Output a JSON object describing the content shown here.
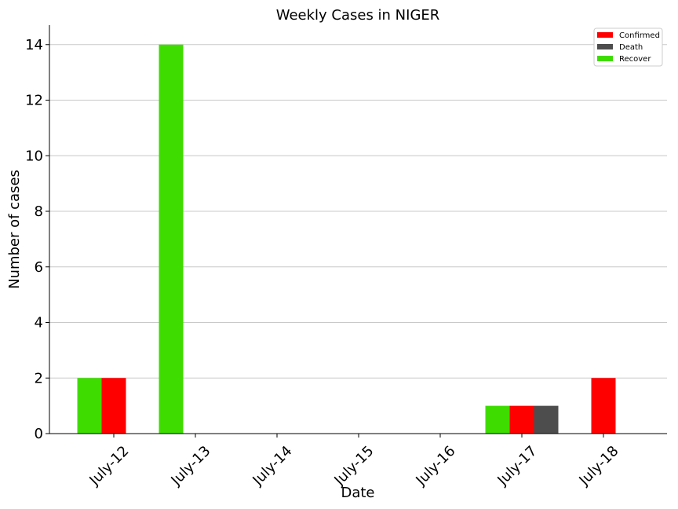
{
  "chart_data": {
    "type": "bar",
    "title": "Weekly Cases in NIGER",
    "xlabel": "Date",
    "ylabel": "Number of cases",
    "categories": [
      "July-12",
      "July-13",
      "July-14",
      "July-15",
      "July-16",
      "July-17",
      "July-18"
    ],
    "series": [
      {
        "name": "Recover",
        "color": "#3fdc00",
        "values": [
          2,
          14,
          0,
          0,
          0,
          1,
          0
        ]
      },
      {
        "name": "Confirmed",
        "color": "#ff0000",
        "values": [
          2,
          0,
          0,
          0,
          0,
          1,
          2
        ]
      },
      {
        "name": "Death",
        "color": "#4d4d4d",
        "values": [
          0,
          0,
          0,
          0,
          0,
          1,
          0
        ]
      }
    ],
    "legend": {
      "position": "top-right",
      "order": [
        "Confirmed",
        "Death",
        "Recover"
      ]
    },
    "ylim": [
      0,
      14.7
    ],
    "yticks": [
      0,
      2,
      4,
      6,
      8,
      10,
      12,
      14
    ],
    "grid": {
      "y": true,
      "x": false
    }
  }
}
